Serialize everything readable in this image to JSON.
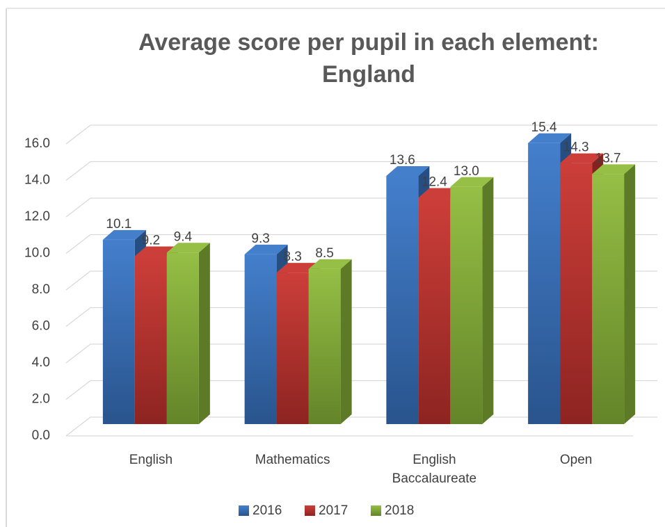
{
  "chart_data": {
    "type": "bar3d",
    "title": "Average score per pupil in each element: England",
    "categories": [
      "English",
      "Mathematics",
      "English Baccalaureate",
      "Open"
    ],
    "series": [
      {
        "name": "2016",
        "color": "#3a78c9",
        "values": [
          10.1,
          9.3,
          13.6,
          15.4
        ],
        "value_labels": [
          "10.1",
          "9.3",
          "13.6",
          "15.4"
        ]
      },
      {
        "name": "2017",
        "color": "#c9342f",
        "values": [
          9.2,
          8.3,
          12.4,
          14.3
        ],
        "value_labels": [
          "9.2",
          "8.3",
          "12.4",
          "14.3"
        ]
      },
      {
        "name": "2018",
        "color": "#8fbc3b",
        "values": [
          9.4,
          8.5,
          13.0,
          13.7
        ],
        "value_labels": [
          "9.4",
          "8.5",
          "13.0",
          "13.7"
        ]
      }
    ],
    "ylim": [
      0,
      16
    ],
    "yticks": [
      {
        "value": 0,
        "label": "0.0"
      },
      {
        "value": 2,
        "label": "2.0"
      },
      {
        "value": 4,
        "label": "4.0"
      },
      {
        "value": 6,
        "label": "6.0"
      },
      {
        "value": 8,
        "label": "8.0"
      },
      {
        "value": 10,
        "label": "10.0"
      },
      {
        "value": 12,
        "label": "12.0"
      },
      {
        "value": 14,
        "label": "14.0"
      },
      {
        "value": 16,
        "label": "16.0"
      }
    ],
    "grid": true,
    "legend": "bottom"
  }
}
